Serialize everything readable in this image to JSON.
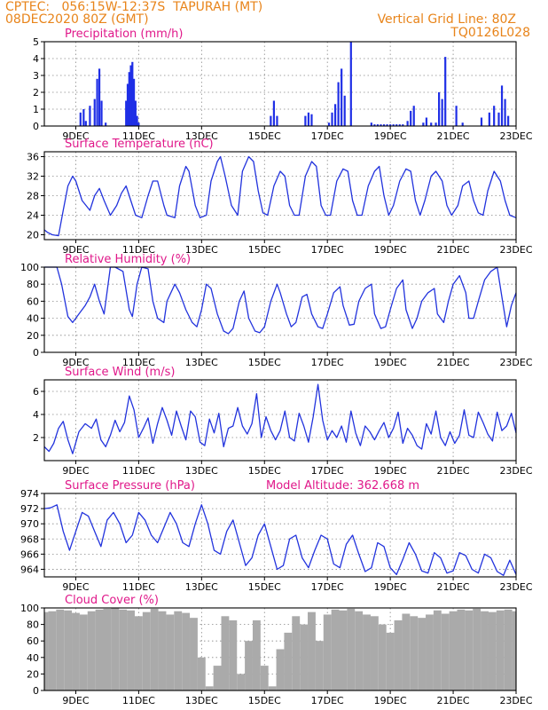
{
  "header": {
    "line1": "CPTEC:   056:15W-12:37S  TAPURAH (MT)",
    "line2": "08DEC2020 80Z (GMT)",
    "vgrid": "Vertical Grid Line: 80Z",
    "code": "TQ0126L028"
  },
  "colors": {
    "header": "#e8841a",
    "title": "#e0188a",
    "line": "#2233dd",
    "bar": "#1f2fe6",
    "cloud": "#aaaaaa",
    "grid": "#888888"
  },
  "chart_data": [
    {
      "type": "bar",
      "title": "Precipitation (mm/h)",
      "x_tick_labels": [
        "9DEC",
        "11DEC",
        "13DEC",
        "15DEC",
        "17DEC",
        "19DEC",
        "21DEC",
        "23DEC"
      ],
      "x_tick_days": [
        9,
        11,
        13,
        15,
        17,
        19,
        21,
        23
      ],
      "xlim": [
        8.0,
        23.0
      ],
      "ylim": [
        0,
        5
      ],
      "y_ticks": [
        0,
        1,
        2,
        3,
        4,
        5
      ],
      "grid": true,
      "x": [
        9.15,
        9.25,
        9.32,
        9.45,
        9.6,
        9.68,
        9.75,
        9.82,
        9.95,
        10.6,
        10.65,
        10.7,
        10.75,
        10.8,
        10.85,
        10.9,
        10.95,
        11.0,
        15.2,
        15.3,
        15.4,
        16.3,
        16.4,
        16.5,
        17.05,
        17.15,
        17.25,
        17.35,
        17.45,
        17.55,
        17.75,
        18.4,
        18.5,
        18.6,
        18.7,
        18.8,
        18.9,
        19.0,
        19.1,
        19.2,
        19.3,
        19.4,
        19.55,
        19.65,
        19.75,
        20.05,
        20.15,
        20.3,
        20.45,
        20.55,
        20.65,
        20.75,
        21.1,
        21.3,
        21.9,
        22.15,
        22.3,
        22.45,
        22.55,
        22.65,
        22.75
      ],
      "values": [
        0.8,
        1.0,
        0.3,
        1.2,
        1.6,
        2.8,
        3.4,
        1.5,
        0.2,
        1.5,
        2.5,
        3.2,
        3.6,
        3.8,
        2.8,
        1.5,
        0.6,
        0.2,
        0.6,
        1.5,
        0.6,
        0.6,
        0.8,
        0.7,
        0.2,
        0.8,
        1.3,
        2.6,
        3.4,
        1.8,
        5.0,
        0.2,
        0.1,
        0.1,
        0.1,
        0.1,
        0.1,
        0.1,
        0.1,
        0.1,
        0.1,
        0.1,
        0.3,
        0.9,
        1.2,
        0.2,
        0.5,
        0.2,
        0.2,
        2.0,
        1.6,
        4.1,
        1.2,
        0.2,
        0.5,
        0.8,
        1.2,
        0.8,
        2.4,
        1.6,
        0.6
      ]
    },
    {
      "type": "line",
      "title": "Surface Temperature (nC)",
      "x_tick_labels": [
        "9DEC",
        "11DEC",
        "13DEC",
        "15DEC",
        "17DEC",
        "19DEC",
        "21DEC",
        "23DEC"
      ],
      "x_tick_days": [
        9,
        11,
        13,
        15,
        17,
        19,
        21,
        23
      ],
      "xlim": [
        8.0,
        23.0
      ],
      "ylim": [
        19,
        37
      ],
      "y_ticks": [
        20,
        24,
        28,
        32,
        36
      ],
      "grid": true,
      "x": [
        8.0,
        8.1,
        8.25,
        8.45,
        8.6,
        8.75,
        8.9,
        9.0,
        9.2,
        9.45,
        9.6,
        9.75,
        9.9,
        10.1,
        10.3,
        10.45,
        10.6,
        10.8,
        10.9,
        11.1,
        11.3,
        11.45,
        11.6,
        11.8,
        11.9,
        12.15,
        12.3,
        12.5,
        12.6,
        12.8,
        12.95,
        13.15,
        13.3,
        13.5,
        13.6,
        13.75,
        13.95,
        14.15,
        14.3,
        14.5,
        14.65,
        14.8,
        14.95,
        15.1,
        15.3,
        15.5,
        15.65,
        15.8,
        15.95,
        16.1,
        16.3,
        16.5,
        16.65,
        16.8,
        16.95,
        17.1,
        17.3,
        17.5,
        17.65,
        17.8,
        17.95,
        18.1,
        18.3,
        18.5,
        18.65,
        18.8,
        18.95,
        19.1,
        19.3,
        19.5,
        19.65,
        19.8,
        19.95,
        20.1,
        20.3,
        20.45,
        20.65,
        20.8,
        20.95,
        21.15,
        21.3,
        21.5,
        21.65,
        21.8,
        21.95,
        22.1,
        22.3,
        22.5,
        22.65,
        22.8,
        23.0
      ],
      "values": [
        21,
        20.5,
        20,
        19.8,
        25,
        30,
        32,
        31,
        27,
        25,
        28,
        29.5,
        27,
        24,
        26,
        28.5,
        30,
        26,
        24,
        23.5,
        28,
        31,
        31,
        26,
        24,
        23.5,
        30,
        34,
        33,
        26,
        23.5,
        24,
        31,
        35,
        36,
        32,
        26,
        24,
        33,
        36,
        35,
        29,
        24.5,
        24,
        30,
        33,
        32,
        26,
        24,
        24,
        32,
        35,
        34,
        26,
        24,
        24,
        31,
        33.5,
        33,
        27,
        24,
        24,
        30,
        33,
        34,
        28,
        24,
        26,
        31,
        33.5,
        33,
        27,
        24,
        27,
        32,
        33,
        31,
        26,
        24,
        26,
        30,
        31,
        27,
        24.5,
        24,
        29,
        33,
        31,
        27,
        24,
        23.5
      ]
    },
    {
      "type": "line",
      "title": "Relative Humidity (%)",
      "x_tick_labels": [
        "9DEC",
        "11DEC",
        "13DEC",
        "15DEC",
        "17DEC",
        "19DEC",
        "21DEC",
        "23DEC"
      ],
      "x_tick_days": [
        9,
        11,
        13,
        15,
        17,
        19,
        21,
        23
      ],
      "xlim": [
        8.0,
        23.0
      ],
      "ylim": [
        0,
        100
      ],
      "y_ticks": [
        0,
        20,
        40,
        60,
        80,
        100
      ],
      "grid": true,
      "x": [
        8.0,
        8.2,
        8.4,
        8.55,
        8.75,
        8.9,
        9.1,
        9.3,
        9.45,
        9.6,
        9.75,
        9.9,
        10.1,
        10.25,
        10.5,
        10.7,
        10.8,
        10.95,
        11.1,
        11.3,
        11.45,
        11.6,
        11.8,
        11.9,
        12.15,
        12.3,
        12.5,
        12.7,
        12.85,
        13.0,
        13.15,
        13.3,
        13.5,
        13.7,
        13.85,
        14.0,
        14.2,
        14.35,
        14.5,
        14.7,
        14.85,
        15.0,
        15.2,
        15.4,
        15.5,
        15.7,
        15.85,
        16.0,
        16.2,
        16.35,
        16.5,
        16.7,
        16.85,
        17.0,
        17.2,
        17.4,
        17.5,
        17.7,
        17.85,
        18.0,
        18.2,
        18.4,
        18.5,
        18.7,
        18.85,
        19.0,
        19.2,
        19.4,
        19.5,
        19.7,
        19.85,
        20.0,
        20.2,
        20.4,
        20.5,
        20.7,
        20.85,
        21.0,
        21.2,
        21.4,
        21.5,
        21.65,
        21.8,
        22.0,
        22.2,
        22.4,
        22.55,
        22.7,
        22.85,
        23.0
      ],
      "values": [
        100,
        100,
        100,
        80,
        42,
        35,
        45,
        55,
        65,
        80,
        60,
        45,
        100,
        100,
        95,
        50,
        42,
        80,
        100,
        98,
        60,
        40,
        35,
        60,
        80,
        70,
        50,
        35,
        30,
        50,
        80,
        75,
        45,
        25,
        22,
        28,
        60,
        72,
        40,
        25,
        23,
        30,
        60,
        80,
        70,
        45,
        30,
        35,
        65,
        68,
        45,
        30,
        28,
        45,
        70,
        77,
        55,
        32,
        33,
        60,
        75,
        80,
        45,
        28,
        30,
        50,
        75,
        85,
        50,
        28,
        40,
        60,
        70,
        75,
        45,
        35,
        60,
        80,
        90,
        70,
        40,
        40,
        60,
        85,
        95,
        100,
        65,
        30,
        55,
        70
      ]
    },
    {
      "type": "line",
      "title": "Surface Wind (m/s)",
      "x_tick_labels": [
        "9DEC",
        "11DEC",
        "13DEC",
        "15DEC",
        "17DEC",
        "19DEC",
        "21DEC",
        "23DEC"
      ],
      "x_tick_days": [
        9,
        11,
        13,
        15,
        17,
        19,
        21,
        23
      ],
      "xlim": [
        8.0,
        23.0
      ],
      "ylim": [
        0,
        7
      ],
      "y_ticks": [
        2,
        4,
        6
      ],
      "grid": true,
      "x": [
        8.0,
        8.15,
        8.3,
        8.45,
        8.6,
        8.75,
        8.9,
        9.1,
        9.3,
        9.5,
        9.65,
        9.8,
        9.95,
        10.1,
        10.25,
        10.4,
        10.55,
        10.7,
        10.85,
        11.0,
        11.15,
        11.3,
        11.45,
        11.6,
        11.75,
        11.9,
        12.05,
        12.2,
        12.35,
        12.5,
        12.65,
        12.8,
        12.95,
        13.1,
        13.25,
        13.4,
        13.55,
        13.7,
        13.85,
        14.0,
        14.15,
        14.3,
        14.45,
        14.6,
        14.75,
        14.9,
        15.05,
        15.2,
        15.35,
        15.5,
        15.65,
        15.8,
        15.95,
        16.1,
        16.25,
        16.4,
        16.55,
        16.7,
        16.85,
        17.0,
        17.15,
        17.3,
        17.45,
        17.6,
        17.75,
        17.9,
        18.05,
        18.2,
        18.35,
        18.5,
        18.65,
        18.8,
        18.95,
        19.1,
        19.25,
        19.4,
        19.55,
        19.7,
        19.85,
        20.0,
        20.15,
        20.3,
        20.45,
        20.6,
        20.75,
        20.9,
        21.05,
        21.2,
        21.35,
        21.5,
        21.65,
        21.8,
        21.95,
        22.1,
        22.25,
        22.4,
        22.55,
        22.7,
        22.85,
        23.0
      ],
      "values": [
        1.2,
        0.8,
        1.5,
        2.8,
        3.4,
        1.8,
        0.6,
        2.5,
        3.2,
        2.8,
        3.6,
        1.8,
        1.2,
        2.2,
        3.5,
        2.5,
        3.3,
        5.6,
        4.4,
        2.0,
        2.8,
        3.7,
        1.5,
        3.2,
        4.6,
        3.5,
        2.2,
        4.3,
        3.0,
        1.8,
        4.3,
        3.8,
        1.6,
        1.3,
        3.6,
        2.4,
        4.1,
        1.2,
        2.8,
        3.0,
        4.6,
        3.0,
        2.3,
        3.2,
        5.8,
        2.0,
        3.8,
        2.6,
        1.8,
        2.6,
        4.3,
        2.0,
        1.7,
        4.1,
        3.0,
        1.6,
        3.8,
        6.6,
        3.5,
        1.8,
        2.6,
        2.0,
        3.0,
        1.6,
        4.3,
        2.4,
        1.3,
        3.0,
        2.5,
        1.8,
        2.6,
        3.3,
        2.0,
        2.8,
        4.2,
        1.5,
        2.8,
        2.2,
        1.3,
        1.0,
        3.2,
        2.3,
        4.3,
        2.0,
        1.3,
        2.5,
        1.5,
        2.2,
        4.4,
        2.2,
        2.0,
        4.2,
        3.3,
        2.3,
        1.7,
        4.2,
        2.6,
        3.0,
        4.1,
        2.4
      ]
    },
    {
      "type": "line",
      "title": "Surface Pressure (hPa)",
      "annotation": "Model Altitude: 362.668 m",
      "x_tick_labels": [
        "9DEC",
        "11DEC",
        "13DEC",
        "15DEC",
        "17DEC",
        "19DEC",
        "21DEC",
        "23DEC"
      ],
      "x_tick_days": [
        9,
        11,
        13,
        15,
        17,
        19,
        21,
        23
      ],
      "xlim": [
        8.0,
        23.0
      ],
      "ylim": [
        963,
        974
      ],
      "y_ticks": [
        964,
        966,
        968,
        970,
        972,
        974
      ],
      "grid": true,
      "x": [
        8.0,
        8.2,
        8.4,
        8.6,
        8.8,
        9.0,
        9.2,
        9.4,
        9.6,
        9.8,
        10.0,
        10.2,
        10.4,
        10.6,
        10.8,
        11.0,
        11.2,
        11.4,
        11.6,
        11.8,
        12.0,
        12.2,
        12.4,
        12.6,
        12.8,
        13.0,
        13.2,
        13.4,
        13.6,
        13.8,
        14.0,
        14.2,
        14.4,
        14.6,
        14.8,
        15.0,
        15.2,
        15.4,
        15.6,
        15.8,
        16.0,
        16.2,
        16.4,
        16.6,
        16.8,
        17.0,
        17.2,
        17.4,
        17.6,
        17.8,
        18.0,
        18.2,
        18.4,
        18.6,
        18.8,
        19.0,
        19.2,
        19.4,
        19.6,
        19.8,
        20.0,
        20.2,
        20.4,
        20.6,
        20.8,
        21.0,
        21.2,
        21.4,
        21.6,
        21.8,
        22.0,
        22.2,
        22.4,
        22.6,
        22.8,
        23.0
      ],
      "values": [
        972,
        972.1,
        972.5,
        969,
        966.5,
        969,
        971.5,
        971,
        969,
        967,
        970.5,
        971.5,
        970,
        967.5,
        968.5,
        971.5,
        970.5,
        968.5,
        967.5,
        969.5,
        971.5,
        970,
        967.5,
        967,
        970,
        972.5,
        970,
        966.5,
        966,
        969,
        970.5,
        967.5,
        964.5,
        965.5,
        968.5,
        970,
        967,
        964,
        964.5,
        968,
        968.5,
        965.5,
        964.2,
        966.5,
        968.5,
        968,
        964.7,
        964.2,
        967.3,
        968.5,
        966,
        963.7,
        964.2,
        967.5,
        967,
        964.2,
        963.3,
        965.3,
        967.5,
        966,
        963.8,
        963.5,
        966.2,
        965.5,
        963.5,
        963.8,
        966.2,
        965.8,
        964,
        963.5,
        966,
        965.5,
        963.7,
        963.2,
        965.2,
        963.3
      ]
    },
    {
      "type": "bar",
      "title": "Cloud Cover (%)",
      "x_tick_labels": [
        "9DEC",
        "11DEC",
        "13DEC",
        "15DEC",
        "17DEC",
        "19DEC",
        "21DEC",
        "23DEC"
      ],
      "x_tick_days": [
        9,
        11,
        13,
        15,
        17,
        19,
        21,
        23
      ],
      "xlim": [
        8.0,
        23.0
      ],
      "ylim": [
        0,
        100
      ],
      "y_ticks": [
        0,
        20,
        40,
        60,
        80,
        100
      ],
      "grid": true,
      "x": [
        8.0,
        8.25,
        8.5,
        8.75,
        9.0,
        9.25,
        9.5,
        9.75,
        10.0,
        10.25,
        10.5,
        10.75,
        11.0,
        11.25,
        11.5,
        11.75,
        12.0,
        12.25,
        12.5,
        12.75,
        13.0,
        13.25,
        13.5,
        13.75,
        14.0,
        14.25,
        14.5,
        14.75,
        15.0,
        15.25,
        15.5,
        15.75,
        16.0,
        16.25,
        16.5,
        16.75,
        17.0,
        17.25,
        17.5,
        17.75,
        18.0,
        18.25,
        18.5,
        18.75,
        19.0,
        19.25,
        19.5,
        19.75,
        20.0,
        20.25,
        20.5,
        20.75,
        21.0,
        21.25,
        21.5,
        21.75,
        22.0,
        22.25,
        22.5,
        22.75,
        23.0
      ],
      "values": [
        95,
        96,
        98,
        97,
        94,
        92,
        96,
        98,
        99,
        100,
        98,
        97,
        90,
        95,
        99,
        96,
        92,
        96,
        94,
        88,
        40,
        5,
        30,
        90,
        85,
        20,
        60,
        85,
        30,
        5,
        50,
        70,
        90,
        80,
        95,
        60,
        92,
        98,
        97,
        99,
        96,
        92,
        90,
        80,
        70,
        85,
        93,
        90,
        88,
        92,
        97,
        93,
        96,
        98,
        97,
        99,
        96,
        95,
        97,
        98,
        96
      ]
    }
  ]
}
